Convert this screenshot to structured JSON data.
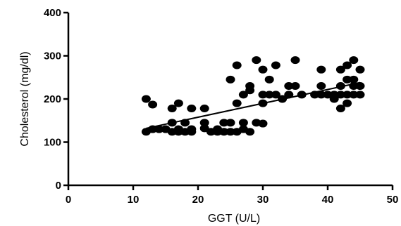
{
  "chart_data": {
    "type": "scatter",
    "xlabel": "GGT (U/L)",
    "ylabel": "Cholesterol (mg/dl)",
    "xlim": [
      0,
      50
    ],
    "ylim": [
      0,
      400
    ],
    "xticks": [
      "0",
      "10",
      "20",
      "30",
      "40",
      "50"
    ],
    "yticks": [
      "0",
      "100",
      "200",
      "300",
      "400"
    ],
    "grid": false,
    "marker_color": "#000000",
    "points": [
      {
        "x": 12,
        "y": 200
      },
      {
        "x": 12,
        "y": 124
      },
      {
        "x": 13,
        "y": 187
      },
      {
        "x": 13,
        "y": 130
      },
      {
        "x": 14,
        "y": 130
      },
      {
        "x": 15,
        "y": 130
      },
      {
        "x": 16,
        "y": 124
      },
      {
        "x": 16,
        "y": 145
      },
      {
        "x": 16,
        "y": 178
      },
      {
        "x": 17,
        "y": 190
      },
      {
        "x": 17,
        "y": 130
      },
      {
        "x": 17,
        "y": 124
      },
      {
        "x": 18,
        "y": 145
      },
      {
        "x": 18,
        "y": 124
      },
      {
        "x": 19,
        "y": 130
      },
      {
        "x": 19,
        "y": 178
      },
      {
        "x": 19,
        "y": 124
      },
      {
        "x": 21,
        "y": 178
      },
      {
        "x": 21,
        "y": 145
      },
      {
        "x": 21,
        "y": 132
      },
      {
        "x": 22,
        "y": 124
      },
      {
        "x": 23,
        "y": 130
      },
      {
        "x": 23,
        "y": 124
      },
      {
        "x": 24,
        "y": 145
      },
      {
        "x": 24,
        "y": 124
      },
      {
        "x": 25,
        "y": 145
      },
      {
        "x": 25,
        "y": 124
      },
      {
        "x": 25,
        "y": 245
      },
      {
        "x": 26,
        "y": 190
      },
      {
        "x": 26,
        "y": 124
      },
      {
        "x": 26,
        "y": 278
      },
      {
        "x": 27,
        "y": 210
      },
      {
        "x": 27,
        "y": 145
      },
      {
        "x": 27,
        "y": 130
      },
      {
        "x": 28,
        "y": 230
      },
      {
        "x": 28,
        "y": 124
      },
      {
        "x": 28,
        "y": 220
      },
      {
        "x": 29,
        "y": 290
      },
      {
        "x": 29,
        "y": 145
      },
      {
        "x": 30,
        "y": 268
      },
      {
        "x": 30,
        "y": 210
      },
      {
        "x": 30,
        "y": 190
      },
      {
        "x": 30,
        "y": 143
      },
      {
        "x": 31,
        "y": 245
      },
      {
        "x": 31,
        "y": 210
      },
      {
        "x": 32,
        "y": 278
      },
      {
        "x": 32,
        "y": 210
      },
      {
        "x": 33,
        "y": 200
      },
      {
        "x": 34,
        "y": 230
      },
      {
        "x": 34,
        "y": 210
      },
      {
        "x": 35,
        "y": 290
      },
      {
        "x": 35,
        "y": 230
      },
      {
        "x": 36,
        "y": 210
      },
      {
        "x": 38,
        "y": 210
      },
      {
        "x": 39,
        "y": 268
      },
      {
        "x": 39,
        "y": 230
      },
      {
        "x": 39,
        "y": 210
      },
      {
        "x": 40,
        "y": 210
      },
      {
        "x": 41,
        "y": 200
      },
      {
        "x": 41,
        "y": 210
      },
      {
        "x": 42,
        "y": 268
      },
      {
        "x": 42,
        "y": 230
      },
      {
        "x": 42,
        "y": 210
      },
      {
        "x": 42,
        "y": 178
      },
      {
        "x": 43,
        "y": 278
      },
      {
        "x": 43,
        "y": 245
      },
      {
        "x": 43,
        "y": 210
      },
      {
        "x": 43,
        "y": 190
      },
      {
        "x": 44,
        "y": 290
      },
      {
        "x": 44,
        "y": 245
      },
      {
        "x": 44,
        "y": 230
      },
      {
        "x": 44,
        "y": 210
      },
      {
        "x": 45,
        "y": 268
      },
      {
        "x": 45,
        "y": 230
      },
      {
        "x": 45,
        "y": 210
      }
    ],
    "trendline": {
      "x": [
        12,
        45
      ],
      "y": [
        132,
        238
      ]
    }
  }
}
